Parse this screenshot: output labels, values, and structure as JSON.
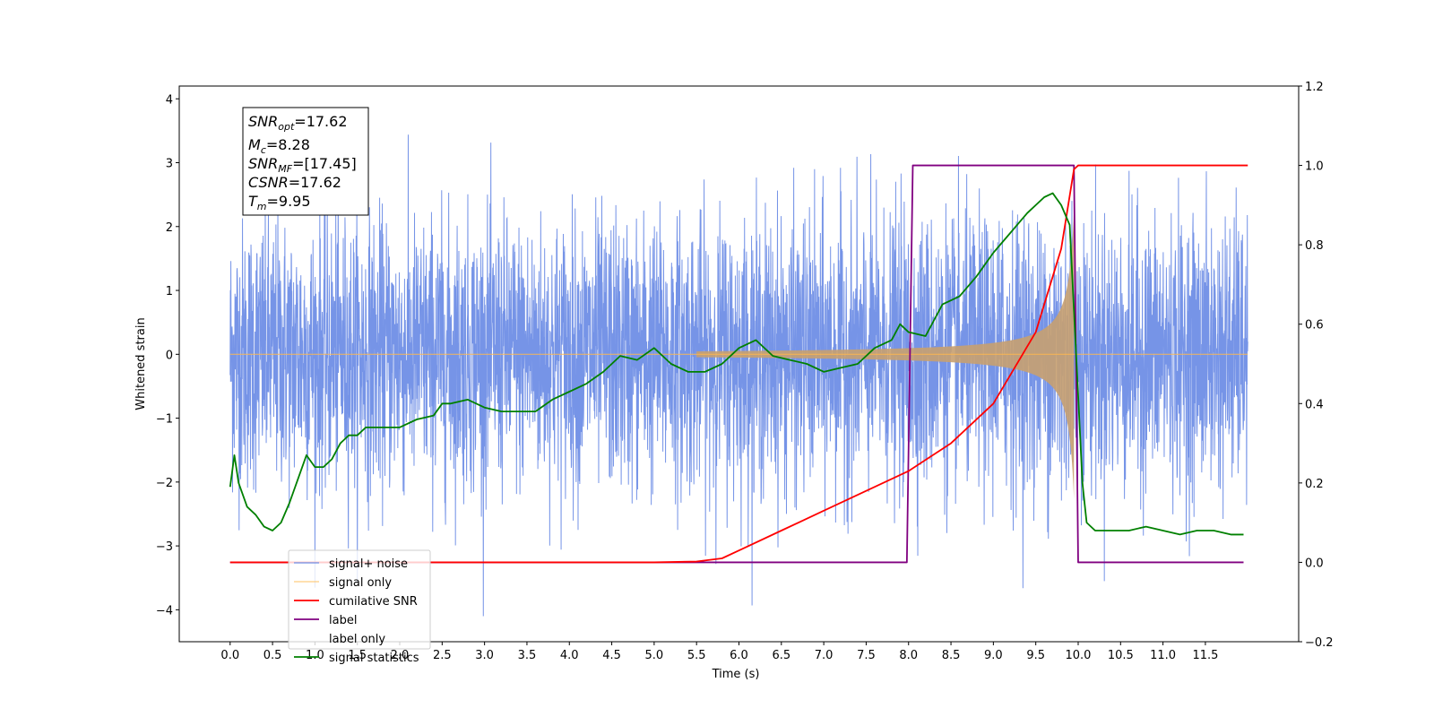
{
  "chart_data": {
    "type": "line",
    "xlabel": "Time (s)",
    "ylabel": "Whitened strain",
    "xlim": [
      -0.6,
      12.6
    ],
    "ylim": [
      -4.5,
      4.2
    ],
    "y2lim": [
      -0.2,
      1.2
    ],
    "x_ticks": [
      "0.0",
      "0.5",
      "1.0",
      "1.5",
      "2.0",
      "2.5",
      "3.0",
      "3.5",
      "4.0",
      "4.5",
      "5.0",
      "5.5",
      "6.0",
      "6.5",
      "7.0",
      "7.5",
      "8.0",
      "8.5",
      "9.0",
      "9.5",
      "10.0",
      "10.5",
      "11.0",
      "11.5"
    ],
    "y_ticks": [
      -4,
      -3,
      -2,
      -1,
      0,
      1,
      2,
      3,
      4
    ],
    "y2_ticks": [
      "−0.2",
      "0.0",
      "0.2",
      "0.4",
      "0.6",
      "0.8",
      "1.0",
      "1.2"
    ],
    "legend_position": "lower-left",
    "grid": false,
    "stats": {
      "snr_opt": "=17.62",
      "mc": "=8.28",
      "snr_mf": "=[17.45]",
      "csnr": "=17.62",
      "tm": "=9.95"
    },
    "series": [
      {
        "name": "signal+ noise",
        "color": "#6f8ee6",
        "axis": "left",
        "description_range": [
          0.0,
          12.0
        ]
      },
      {
        "name": "signal only",
        "color": "#ffb84d",
        "axis": "left",
        "onset": 5.5,
        "end": 9.95
      },
      {
        "name": "cumilative SNR",
        "color": "#ff0000",
        "axis": "right",
        "x": [
          0.0,
          5.0,
          5.5,
          5.8,
          6.0,
          6.5,
          7.0,
          7.5,
          8.0,
          8.5,
          9.0,
          9.5,
          9.8,
          9.95,
          10.0,
          12.0
        ],
        "y": [
          0.0,
          0.0,
          0.002,
          0.01,
          0.03,
          0.08,
          0.13,
          0.18,
          0.23,
          0.3,
          0.4,
          0.58,
          0.79,
          0.99,
          1.0,
          1.0
        ]
      },
      {
        "name": "label",
        "color": "#800080",
        "axis": "right",
        "x": [
          0.0,
          7.98,
          8.05,
          9.95,
          10.0,
          11.95
        ],
        "y": [
          0.0,
          0.0,
          1.0,
          1.0,
          0.0,
          0.0
        ]
      },
      {
        "name": "label only",
        "color": "#ffffff",
        "axis": "right"
      },
      {
        "name": "signal statistics",
        "color": "#008000",
        "axis": "right",
        "x": [
          0.0,
          0.05,
          0.1,
          0.2,
          0.3,
          0.4,
          0.5,
          0.6,
          0.7,
          0.8,
          0.9,
          1.0,
          1.1,
          1.2,
          1.3,
          1.4,
          1.5,
          1.6,
          1.8,
          2.0,
          2.2,
          2.4,
          2.5,
          2.6,
          2.8,
          3.0,
          3.2,
          3.4,
          3.6,
          3.8,
          4.0,
          4.2,
          4.4,
          4.5,
          4.6,
          4.8,
          5.0,
          5.2,
          5.4,
          5.6,
          5.8,
          6.0,
          6.2,
          6.4,
          6.6,
          6.8,
          7.0,
          7.2,
          7.4,
          7.6,
          7.8,
          7.9,
          8.0,
          8.2,
          8.4,
          8.6,
          8.8,
          9.0,
          9.2,
          9.4,
          9.6,
          9.7,
          9.8,
          9.9,
          10.0,
          10.05,
          10.1,
          10.2,
          10.4,
          10.6,
          10.8,
          11.0,
          11.2,
          11.4,
          11.6,
          11.8,
          11.95
        ],
        "y": [
          0.19,
          0.27,
          0.2,
          0.14,
          0.12,
          0.09,
          0.08,
          0.1,
          0.15,
          0.21,
          0.27,
          0.24,
          0.24,
          0.26,
          0.3,
          0.32,
          0.32,
          0.34,
          0.34,
          0.34,
          0.36,
          0.37,
          0.4,
          0.4,
          0.41,
          0.39,
          0.38,
          0.38,
          0.38,
          0.41,
          0.43,
          0.45,
          0.48,
          0.5,
          0.52,
          0.51,
          0.54,
          0.5,
          0.48,
          0.48,
          0.5,
          0.54,
          0.56,
          0.52,
          0.51,
          0.5,
          0.48,
          0.49,
          0.5,
          0.54,
          0.56,
          0.6,
          0.58,
          0.57,
          0.65,
          0.67,
          0.72,
          0.78,
          0.83,
          0.88,
          0.92,
          0.93,
          0.9,
          0.85,
          0.42,
          0.2,
          0.1,
          0.08,
          0.08,
          0.08,
          0.09,
          0.08,
          0.07,
          0.08,
          0.08,
          0.07,
          0.07
        ]
      }
    ]
  }
}
